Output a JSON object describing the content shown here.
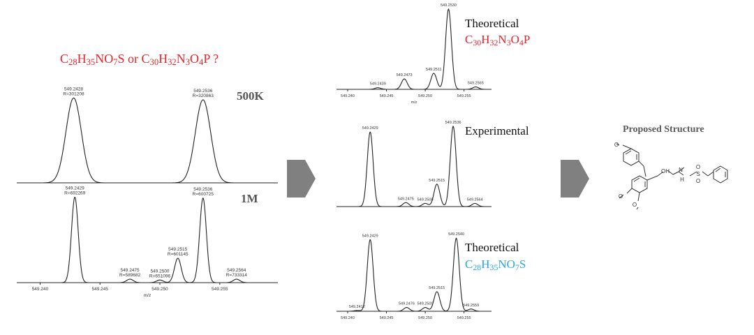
{
  "question": {
    "f1": [
      [
        "C",
        ""
      ],
      [
        "28",
        "sub"
      ],
      [
        "H",
        ""
      ],
      [
        "35",
        "sub"
      ],
      [
        "NO",
        ""
      ],
      [
        "7",
        "sub"
      ],
      [
        "S",
        ""
      ]
    ],
    "mid": " or ",
    "f2": [
      [
        "C",
        ""
      ],
      [
        "30",
        "sub"
      ],
      [
        "H",
        ""
      ],
      [
        "32",
        "sub"
      ],
      [
        "N",
        ""
      ],
      [
        "3",
        "sub"
      ],
      [
        "O",
        ""
      ],
      [
        "4",
        "sub"
      ],
      [
        "P",
        ""
      ]
    ],
    "tail": " ?"
  },
  "formula_a": [
    [
      "C",
      ""
    ],
    [
      "30",
      "sub"
    ],
    [
      "H",
      ""
    ],
    [
      "32",
      "sub"
    ],
    [
      "N",
      ""
    ],
    [
      "3",
      "sub"
    ],
    [
      "O",
      ""
    ],
    [
      "4",
      "sub"
    ],
    [
      "P",
      ""
    ]
  ],
  "formula_b": [
    [
      "C",
      ""
    ],
    [
      "28",
      "sub"
    ],
    [
      "H",
      ""
    ],
    [
      "35",
      "sub"
    ],
    [
      "NO",
      ""
    ],
    [
      "7",
      "sub"
    ],
    [
      "S",
      ""
    ]
  ],
  "colors": {
    "red": "#e8242a",
    "blue": "#29a8e0",
    "arrow": "#808080"
  },
  "spectra": {
    "res500k": {
      "label": "500K",
      "peaks": [
        {
          "mz": "549.2428",
          "res": "R=301208",
          "height": 0.95
        },
        {
          "mz": "549.2536",
          "res": "R=320863",
          "height": 0.93
        }
      ]
    },
    "res1m": {
      "label": "1M",
      "xlabel": "m/z",
      "ticks": [
        "549.240",
        "549.245",
        "549.250",
        "549.255"
      ],
      "peaks": [
        {
          "mz": "549.2429",
          "res": "R=692269",
          "height": 0.98
        },
        {
          "mz": "549.2475",
          "res": "R=589682",
          "height": 0.04
        },
        {
          "mz": "549.2500",
          "res": "R=651096",
          "height": 0.03
        },
        {
          "mz": "549.2515",
          "res": "R=601145",
          "height": 0.28
        },
        {
          "mz": "549.2536",
          "res": "R=600725",
          "height": 0.97
        },
        {
          "mz": "549.2564",
          "res": "R=733314",
          "height": 0.04
        }
      ]
    },
    "theoretical_a": {
      "title": "Theoretical",
      "xlabel": "m/z",
      "ticks": [
        "549.240",
        "549.245",
        "549.250",
        "549.255"
      ],
      "peaks": [
        {
          "mz": "549.2439",
          "height": 0.02
        },
        {
          "mz": "549.2473",
          "height": 0.13
        },
        {
          "mz": "549.2511",
          "height": 0.2
        },
        {
          "mz": "549.2530",
          "height": 1.0
        },
        {
          "mz": "549.2565",
          "height": 0.03
        }
      ]
    },
    "experimental": {
      "title": "Experimental",
      "peaks": [
        {
          "mz": "549.2429",
          "height": 0.93
        },
        {
          "mz": "549.2475",
          "height": 0.05
        },
        {
          "mz": "549.2500",
          "height": 0.04
        },
        {
          "mz": "549.2515",
          "height": 0.28
        },
        {
          "mz": "549.2536",
          "height": 1.0
        },
        {
          "mz": "549.2564",
          "height": 0.04
        }
      ]
    },
    "theoretical_b": {
      "title": "Theoretical",
      "ticks": [
        "549.240",
        "549.245",
        "549.250",
        "549.255"
      ],
      "peaks": [
        {
          "mz": "549.2412",
          "height": 0.01
        },
        {
          "mz": "549.2429",
          "height": 0.95
        },
        {
          "mz": "549.2476",
          "height": 0.05
        },
        {
          "mz": "549.2500",
          "height": 0.05
        },
        {
          "mz": "549.2515",
          "height": 0.26
        },
        {
          "mz": "549.2540",
          "height": 0.97
        },
        {
          "mz": "549.2559",
          "height": 0.03
        }
      ]
    }
  },
  "structure": {
    "title": "Proposed Structure",
    "atoms": [
      "O",
      "O",
      "O",
      "OH",
      "N",
      "H",
      "S",
      "O",
      "O"
    ]
  }
}
